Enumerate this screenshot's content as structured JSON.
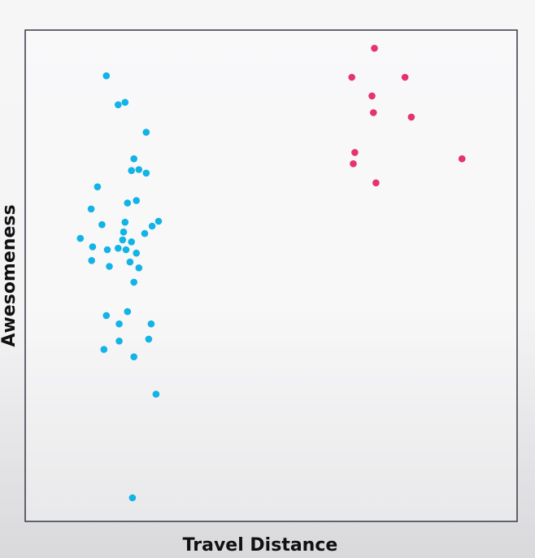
{
  "chart_data": {
    "type": "scatter",
    "title": "",
    "xlabel": "Travel Distance",
    "ylabel": "Awesomeness",
    "xlim": [
      0,
      100
    ],
    "ylim": [
      0,
      100
    ],
    "grid": false,
    "legend": "none",
    "series": [
      {
        "color": "#12b3e6",
        "points": [
          [
            16.5,
            90.7
          ],
          [
            18.9,
            84.8
          ],
          [
            20.3,
            85.3
          ],
          [
            24.6,
            79.2
          ],
          [
            22.1,
            73.8
          ],
          [
            21.6,
            71.4
          ],
          [
            23.1,
            71.6
          ],
          [
            24.6,
            70.9
          ],
          [
            14.7,
            68.1
          ],
          [
            13.4,
            63.6
          ],
          [
            15.6,
            60.4
          ],
          [
            20.8,
            64.8
          ],
          [
            22.6,
            65.3
          ],
          [
            27.1,
            61.1
          ],
          [
            25.8,
            60.1
          ],
          [
            24.3,
            58.6
          ],
          [
            20.3,
            60.9
          ],
          [
            20.0,
            58.9
          ],
          [
            21.6,
            56.9
          ],
          [
            19.8,
            57.3
          ],
          [
            11.2,
            57.6
          ],
          [
            13.7,
            55.9
          ],
          [
            16.7,
            55.3
          ],
          [
            18.9,
            55.6
          ],
          [
            20.5,
            55.3
          ],
          [
            22.6,
            54.6
          ],
          [
            21.3,
            52.8
          ],
          [
            13.5,
            53.1
          ],
          [
            17.1,
            51.9
          ],
          [
            23.1,
            51.6
          ],
          [
            22.1,
            48.7
          ],
          [
            20.8,
            42.7
          ],
          [
            16.5,
            41.9
          ],
          [
            19.1,
            40.2
          ],
          [
            25.6,
            40.2
          ],
          [
            19.1,
            36.7
          ],
          [
            25.1,
            37.1
          ],
          [
            16.0,
            35.0
          ],
          [
            22.1,
            33.5
          ],
          [
            26.6,
            25.9
          ],
          [
            21.8,
            4.8
          ]
        ]
      },
      {
        "color": "#e5336f",
        "points": [
          [
            71.0,
            96.3
          ],
          [
            66.4,
            90.4
          ],
          [
            77.2,
            90.4
          ],
          [
            70.5,
            86.6
          ],
          [
            70.8,
            83.2
          ],
          [
            78.5,
            82.3
          ],
          [
            67.0,
            75.1
          ],
          [
            66.7,
            72.8
          ],
          [
            88.8,
            73.8
          ],
          [
            71.3,
            68.9
          ]
        ]
      }
    ]
  }
}
